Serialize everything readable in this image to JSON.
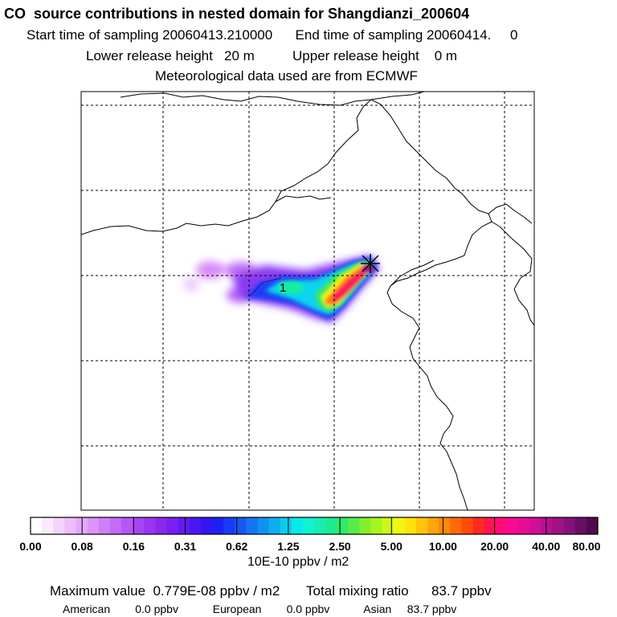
{
  "header": {
    "title": "CO  source contributions in nested domain for Shangdianzi_200604",
    "sampling_line": "Start time of sampling 20060413.210000      End time of sampling 20060414.     0",
    "release_line": "Lower release height   20 m          Upper release height    0 m",
    "met_line": "Meteorological data used are from ECMWF"
  },
  "map": {
    "station_marker_label": "1",
    "grid_style": "dashed"
  },
  "colorbar": {
    "tick_labels": [
      "0.00",
      "0.08",
      "0.16",
      "0.31",
      "0.62",
      "1.25",
      "2.50",
      "5.00",
      "10.00",
      "20.00",
      "40.00",
      "80.00"
    ],
    "units": "10E-10 ppbv / m2",
    "colors": [
      "#ffffff",
      "#fbeafe",
      "#f4d3fd",
      "#edbdfc",
      "#e5a8fb",
      "#dc94fa",
      "#d17ff9",
      "#c46bf7",
      "#b657f5",
      "#a845f3",
      "#9a35f0",
      "#8c28ee",
      "#7a1ff0",
      "#621af2",
      "#4b16f4",
      "#3513f6",
      "#1f1ff6",
      "#1a3af5",
      "#1757f4",
      "#1474f2",
      "#1191f0",
      "#0eaeee",
      "#0bcbed",
      "#09e8ec",
      "#10f2d4",
      "#16efb0",
      "#1cec8c",
      "#30ea68",
      "#56ec48",
      "#7ff030",
      "#a8f41f",
      "#d0f615",
      "#f2f511",
      "#ffe20e",
      "#ffc40b",
      "#ffa608",
      "#ff8806",
      "#ff6a05",
      "#ff4a08",
      "#ff2a20",
      "#ff1450",
      "#ff0a78",
      "#f80a92",
      "#e60c98",
      "#d00e96",
      "#b81090",
      "#9e1286",
      "#841278",
      "#6a0e64",
      "#520a4e"
    ]
  },
  "footer": {
    "max_line": "Maximum value  0.779E-08 ppbv / m2       Total mixing ratio      83.7 ppbv",
    "regions_line": "American        0.0 ppbv           European        0.0 ppbv           Asian     83.7 ppbv"
  }
}
